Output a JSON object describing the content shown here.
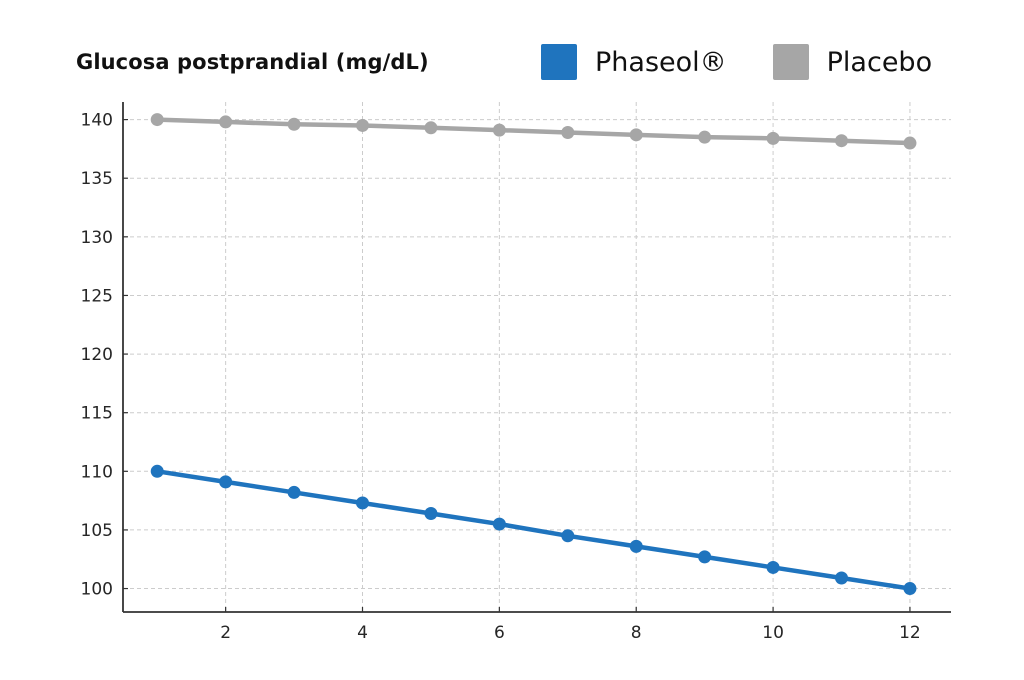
{
  "chart_data": {
    "type": "line",
    "title": "Glucosa postprandial (mg/dL)",
    "xlabel": "",
    "ylabel": "",
    "x": [
      1,
      2,
      3,
      4,
      5,
      6,
      7,
      8,
      9,
      10,
      11,
      12
    ],
    "xlim": [
      0.5,
      12.6
    ],
    "ylim": [
      98,
      141.5
    ],
    "xticks": [
      2,
      4,
      6,
      8,
      10,
      12
    ],
    "yticks": [
      100,
      105,
      110,
      115,
      120,
      125,
      130,
      135,
      140
    ],
    "grid": true,
    "legend_position": "top-right",
    "series": [
      {
        "name": "Phaseol®",
        "color": "#1f74be",
        "values": [
          110,
          109.1,
          108.2,
          107.3,
          106.4,
          105.5,
          104.5,
          103.6,
          102.7,
          101.8,
          100.9,
          100
        ]
      },
      {
        "name": "Placebo",
        "color": "#a6a6a6",
        "values": [
          140,
          139.8,
          139.6,
          139.5,
          139.3,
          139.1,
          138.9,
          138.7,
          138.5,
          138.4,
          138.2,
          138
        ]
      }
    ]
  }
}
